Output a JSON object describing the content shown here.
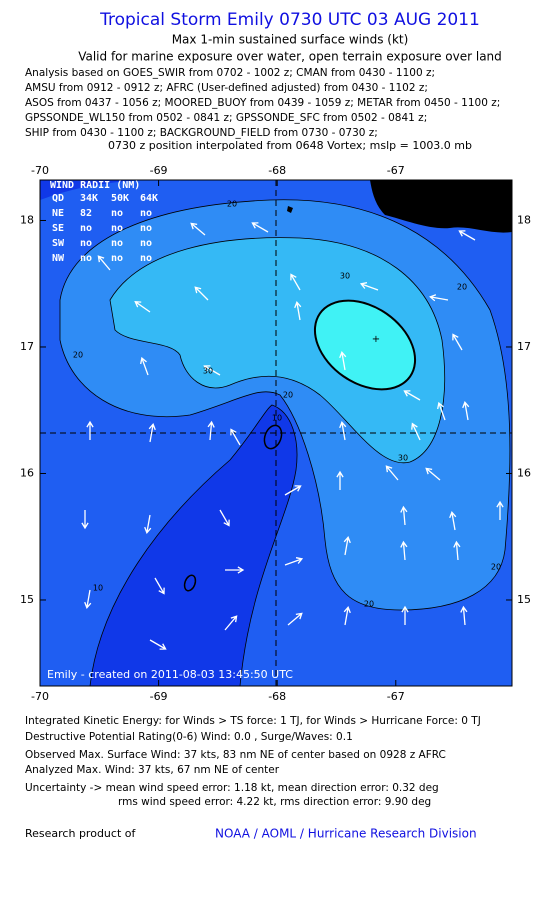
{
  "header": {
    "title": "Tropical Storm Emily 0730 UTC 03 AUG 2011",
    "subtitle": "Max 1-min sustained surface winds (kt)",
    "valid": "Valid for marine exposure over water, open terrain exposure over land",
    "analysis_lines": [
      "Analysis based on GOES_SWIR from 0702 - 1002 z; CMAN from 0430 - 1100 z;",
      "AMSU from 0912 - 0912 z; AFRC (User-defined adjusted) from 0430 - 1102 z;",
      "ASOS from 0437 - 1056 z; MOORED_BUOY from 0439 - 1059 z; METAR from 0450 - 1100 z;",
      "GPSSONDE_WL150 from 0502 - 0841 z; GPSSONDE_SFC from 0502 - 0841 z;",
      "SHIP from 0430 - 1100 z; BACKGROUND_FIELD from 0730 - 0730 z;"
    ],
    "position": "0730 z position interpolated from 0648 Vortex; mslp = 1003.0 mb"
  },
  "map": {
    "xlim": [
      -70,
      -66.02
    ],
    "ylim": [
      14.32,
      18.32
    ],
    "xticks": [
      -70,
      -69,
      -68,
      -67
    ],
    "yticks": [
      18,
      17,
      16,
      15
    ],
    "contour_labels": [
      20,
      30,
      20,
      30,
      20,
      30,
      20,
      20,
      10,
      20,
      10
    ],
    "wind_radii": {
      "title": "WIND RADII (NM)",
      "header": [
        "QD",
        "34K",
        "50K",
        "64K"
      ],
      "rows": [
        [
          "NE",
          "82",
          "no",
          "no"
        ],
        [
          "SE",
          "no",
          "no",
          "no"
        ],
        [
          "SW",
          "no",
          "no",
          "no"
        ],
        [
          "NW",
          "no",
          "no",
          "no"
        ]
      ]
    },
    "watermark": "Emily - created on 2011-08-03 13:45:50 UTC"
  },
  "footer": {
    "lines": [
      "Integrated Kinetic Energy:  for Winds > TS force: 1 TJ,  for Winds > Hurricane Force: 0 TJ",
      "Destructive Potential Rating(0-6)   Wind: 0.0 , Surge/Waves: 0.1",
      "Observed Max. Surface Wind: 37 kts, 83 nm NE of center based on 0928 z AFRC",
      "Analyzed Max. Wind: 37 kts, 67 nm NE of center",
      "Uncertainty -> mean wind speed error: 1.18 kt,   mean direction error: 0.32 deg",
      "rms wind speed error: 4.22 kt,   rms direction error: 9.90 deg"
    ],
    "research": "Research product of",
    "org": "NOAA / AOML / Hurricane Research Division"
  }
}
